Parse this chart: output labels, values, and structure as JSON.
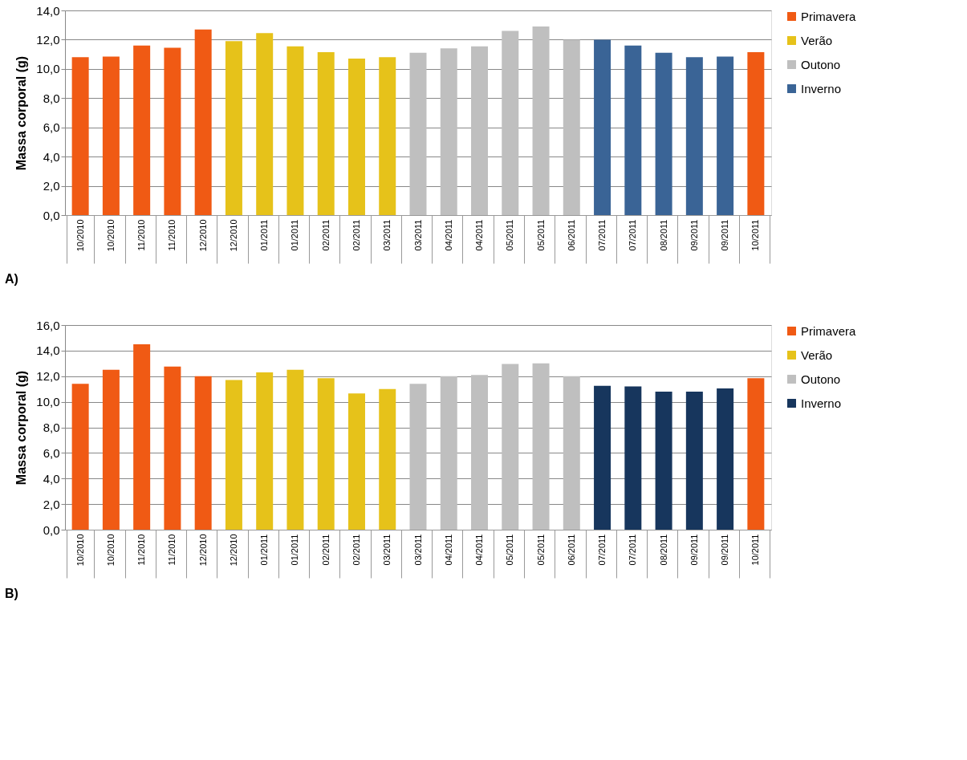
{
  "chart_data": [
    {
      "type": "bar",
      "ylabel": "Massa corporal (g)",
      "categories": [
        "10/2010",
        "10/2010",
        "11/2010",
        "11/2010",
        "12/2010",
        "12/2010",
        "01/2011",
        "01/2011",
        "02/2011",
        "02/2011",
        "03/2011",
        "03/2011",
        "04/2011",
        "04/2011",
        "05/2011",
        "05/2011",
        "06/2011",
        "07/2011",
        "07/2011",
        "08/2011",
        "09/2011",
        "09/2011",
        "10/2011"
      ],
      "series": [
        {
          "name": "Primavera",
          "color": "#f05a14",
          "values": [
            10.8,
            10.85,
            11.6,
            11.45,
            12.7,
            null,
            null,
            null,
            null,
            null,
            null,
            null,
            null,
            null,
            null,
            null,
            null,
            null,
            null,
            null,
            null,
            null,
            11.15
          ]
        },
        {
          "name": "Verão",
          "color": "#e6c21a",
          "values": [
            null,
            null,
            null,
            null,
            null,
            11.9,
            12.45,
            11.55,
            11.15,
            10.7,
            10.8,
            null,
            null,
            null,
            null,
            null,
            null,
            null,
            null,
            null,
            null,
            null,
            null
          ]
        },
        {
          "name": "Outono",
          "color": "#bfbfbf",
          "values": [
            null,
            null,
            null,
            null,
            null,
            null,
            null,
            null,
            null,
            null,
            null,
            11.1,
            11.4,
            11.55,
            12.6,
            12.9,
            12.0,
            null,
            null,
            null,
            null,
            null,
            null
          ]
        },
        {
          "name": "Inverno",
          "color": "#3a6496",
          "values": [
            null,
            null,
            null,
            null,
            null,
            null,
            null,
            null,
            null,
            null,
            null,
            null,
            null,
            null,
            null,
            null,
            null,
            12.0,
            11.6,
            11.1,
            10.8,
            10.85,
            null
          ]
        }
      ],
      "ylim": [
        0,
        14
      ],
      "yticks": [
        {
          "value": 0,
          "label": "0,0"
        },
        {
          "value": 2,
          "label": "2,0"
        },
        {
          "value": 4,
          "label": "4,0"
        },
        {
          "value": 6,
          "label": "6,0"
        },
        {
          "value": 8,
          "label": "8,0"
        },
        {
          "value": 10,
          "label": "10,0"
        },
        {
          "value": 12,
          "label": "12,0"
        },
        {
          "value": 14,
          "label": "14,0"
        }
      ],
      "grid": "y",
      "legend": "right",
      "annotations": [
        "A)"
      ]
    },
    {
      "type": "bar",
      "ylabel": "Massa corporal (g)",
      "categories": [
        "10/2010",
        "10/2010",
        "11/2010",
        "11/2010",
        "12/2010",
        "12/2010",
        "01/2011",
        "01/2011",
        "02/2011",
        "02/2011",
        "03/2011",
        "03/2011",
        "04/2011",
        "04/2011",
        "05/2011",
        "05/2011",
        "06/2011",
        "07/2011",
        "07/2011",
        "08/2011",
        "09/2011",
        "09/2011",
        "10/2011"
      ],
      "series": [
        {
          "name": "Primavera",
          "color": "#f05a14",
          "values": [
            11.4,
            12.5,
            14.5,
            12.75,
            12.0,
            null,
            null,
            null,
            null,
            null,
            null,
            null,
            null,
            null,
            null,
            null,
            null,
            null,
            null,
            null,
            null,
            null,
            11.85
          ]
        },
        {
          "name": "Verão",
          "color": "#e6c21a",
          "values": [
            null,
            null,
            null,
            null,
            null,
            11.7,
            12.3,
            12.5,
            11.85,
            10.65,
            11.0,
            null,
            null,
            null,
            null,
            null,
            null,
            null,
            null,
            null,
            null,
            null,
            null
          ]
        },
        {
          "name": "Outono",
          "color": "#bfbfbf",
          "values": [
            null,
            null,
            null,
            null,
            null,
            null,
            null,
            null,
            null,
            null,
            null,
            11.4,
            12.0,
            12.1,
            12.95,
            13.0,
            12.0,
            null,
            null,
            null,
            null,
            null,
            null
          ]
        },
        {
          "name": "Inverno",
          "color": "#17365d",
          "values": [
            null,
            null,
            null,
            null,
            null,
            null,
            null,
            null,
            null,
            null,
            null,
            null,
            null,
            null,
            null,
            null,
            null,
            11.25,
            11.2,
            10.8,
            10.8,
            11.05,
            null
          ]
        }
      ],
      "ylim": [
        0,
        16
      ],
      "yticks": [
        {
          "value": 0,
          "label": "0,0"
        },
        {
          "value": 2,
          "label": "2,0"
        },
        {
          "value": 4,
          "label": "4,0"
        },
        {
          "value": 6,
          "label": "6,0"
        },
        {
          "value": 8,
          "label": "8,0"
        },
        {
          "value": 10,
          "label": "10,0"
        },
        {
          "value": 12,
          "label": "12,0"
        },
        {
          "value": 14,
          "label": "14,0"
        },
        {
          "value": 16,
          "label": "16,0"
        }
      ],
      "grid": "y",
      "legend": "right",
      "annotations": [
        "B)"
      ]
    }
  ]
}
